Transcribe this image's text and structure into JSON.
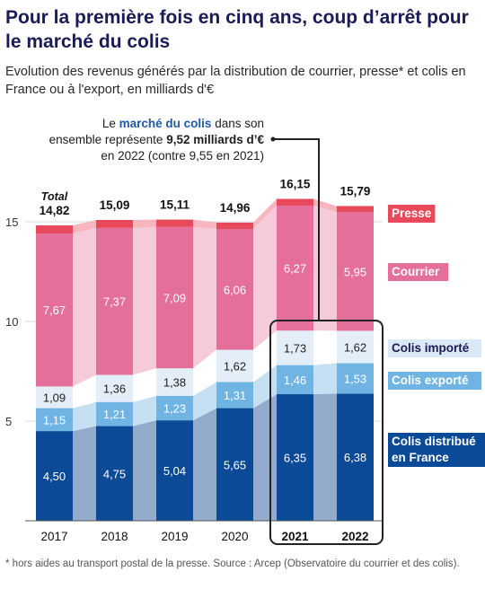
{
  "title": "Pour la première fois en cinq ans, coup d’arrêt pour le marché du colis",
  "subtitle": "Evolution des revenus générés par la distribution de courrier, presse* et colis en France ou à l'export, en milliards d'€",
  "footnote": "* hors aides au transport postal de la presse. Source : Arcep (Observatoire du courrier et des colis).",
  "annotation": {
    "prefix": "Le ",
    "highlight": "marché du colis",
    "line1_suffix": " dans son",
    "line2_prefix": "ensemble représente ",
    "line2_bold": "9,52 milliards d’€",
    "line3": "en 2022 (contre 9,55 en 2021)"
  },
  "total_label": "Total",
  "colors": {
    "presse": "#e8495a",
    "courrier": "#e46f9a",
    "colis_importe": "#e3eef9",
    "colis_exporte": "#6fb4e3",
    "colis_distribue": "#0b4a96",
    "band_presse": "#f7b5bd",
    "band_courrier": "#f5cbd9",
    "band_importe": "#ffffff",
    "band_exporte": "#c6e0f3",
    "band_distribue": "#93abcb",
    "legend_importe_bg": "#dbe9f7",
    "highlight_text": "#1e5aa8",
    "axis_text": "#333333",
    "grid": "#d8d8d8",
    "frame": "#222222"
  },
  "chart_data": {
    "type": "bar",
    "stacked": true,
    "categories": [
      "2017",
      "2018",
      "2019",
      "2020",
      "2021",
      "2022"
    ],
    "highlighted_categories": [
      "2021",
      "2022"
    ],
    "series": [
      {
        "key": "colis_distribue",
        "name": "Colis distribué en France",
        "name_lines": [
          "Colis distribué",
          "en France"
        ],
        "values": [
          4.5,
          4.75,
          5.04,
          5.65,
          6.35,
          6.38
        ],
        "labels": [
          "4,50",
          "4,75",
          "5,04",
          "5,65",
          "6,35",
          "6,38"
        ]
      },
      {
        "key": "colis_exporte",
        "name": "Colis exporté",
        "name_lines": [
          "Colis exporté"
        ],
        "values": [
          1.15,
          1.21,
          1.23,
          1.31,
          1.46,
          1.53
        ],
        "labels": [
          "1,15",
          "1,21",
          "1,23",
          "1,31",
          "1,46",
          "1,53"
        ]
      },
      {
        "key": "colis_importe",
        "name": "Colis importé",
        "name_lines": [
          "Colis importé"
        ],
        "values": [
          1.09,
          1.36,
          1.38,
          1.62,
          1.73,
          1.62
        ],
        "labels": [
          "1,09",
          "1,36",
          "1,38",
          "1,62",
          "1,73",
          "1,62"
        ]
      },
      {
        "key": "courrier",
        "name": "Courrier",
        "name_lines": [
          "Courrier"
        ],
        "values": [
          7.67,
          7.37,
          7.09,
          6.06,
          6.27,
          5.95
        ],
        "labels": [
          "7,67",
          "7,37",
          "7,09",
          "6,06",
          "6,27",
          "5,95"
        ]
      },
      {
        "key": "presse",
        "name": "Presse",
        "name_lines": [
          "Presse"
        ],
        "values": [
          0.41,
          0.4,
          0.37,
          0.32,
          0.34,
          0.31
        ],
        "labels": null
      }
    ],
    "totals": [
      14.82,
      15.09,
      15.11,
      14.96,
      16.15,
      15.79
    ],
    "total_labels": [
      "14,82",
      "15,09",
      "15,11",
      "14,96",
      "16,15",
      "15,79"
    ],
    "yticks": [
      5,
      10,
      15
    ],
    "ylim": [
      0,
      15.2
    ],
    "grid": true,
    "legend": "right"
  }
}
